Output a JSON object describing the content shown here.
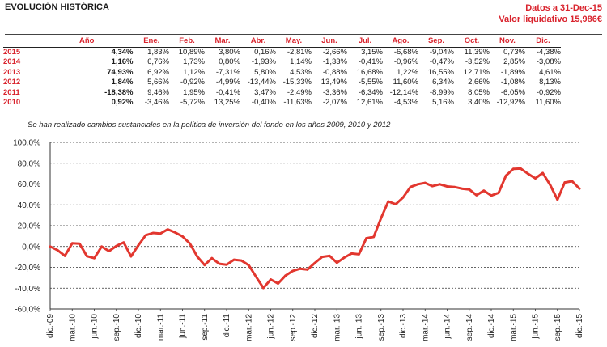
{
  "header": {
    "title": "EVOLUCIÓN HISTÓRICA",
    "date_line": "Datos a 31-Dec-15",
    "value_line": "Valor liquidativo 15,986€"
  },
  "table": {
    "year_header": "Año",
    "month_headers": [
      "Ene.",
      "Feb.",
      "Mar.",
      "Abr.",
      "May.",
      "Jun.",
      "Jul.",
      "Ago.",
      "Sep.",
      "Oct.",
      "Nov.",
      "Dic."
    ],
    "rows": [
      {
        "year": "2015",
        "ytd": "4,34%",
        "months": [
          "1,83%",
          "10,89%",
          "3,80%",
          "0,16%",
          "-2,81%",
          "-2,66%",
          "3,15%",
          "-6,68%",
          "-9,04%",
          "11,39%",
          "0,73%",
          "-4,38%"
        ]
      },
      {
        "year": "2014",
        "ytd": "1,16%",
        "months": [
          "6,76%",
          "1,73%",
          "0,80%",
          "-1,93%",
          "1,14%",
          "-1,33%",
          "-0,41%",
          "-0,96%",
          "-0,47%",
          "-3,52%",
          "2,85%",
          "-3,08%"
        ]
      },
      {
        "year": "2013",
        "ytd": "74,93%",
        "months": [
          "6,92%",
          "1,12%",
          "-7,31%",
          "5,80%",
          "4,53%",
          "-0,88%",
          "16,68%",
          "1,22%",
          "16,55%",
          "12,71%",
          "-1,89%",
          "4,61%"
        ]
      },
      {
        "year": "2012",
        "ytd": "1,84%",
        "months": [
          "5,66%",
          "-0,92%",
          "-4,99%",
          "-13,44%",
          "-15,33%",
          "13,49%",
          "-5,55%",
          "11,60%",
          "6,34%",
          "2,66%",
          "-1,08%",
          "8,13%"
        ]
      },
      {
        "year": "2011",
        "ytd": "-18,38%",
        "months": [
          "9,46%",
          "1,95%",
          "-0,41%",
          "3,47%",
          "-2,49%",
          "-3,36%",
          "-6,34%",
          "-12,14%",
          "-8,99%",
          "8,05%",
          "-6,05%",
          "-0,92%"
        ]
      },
      {
        "year": "2010",
        "ytd": "0,92%",
        "months": [
          "-3,46%",
          "-5,72%",
          "13,25%",
          "-0,40%",
          "-11,63%",
          "-2,07%",
          "12,61%",
          "-4,53%",
          "5,16%",
          "3,40%",
          "-12,92%",
          "11,60%"
        ]
      }
    ]
  },
  "note": "Se han realizado cambios sustanciales en la política de inversión del fondo en los años 2009, 2010 y 2012",
  "chart_data": {
    "type": "line",
    "y_tick_labels": [
      "100,0%",
      "80,0%",
      "60,0%",
      "40,0%",
      "20,0%",
      "0,0%",
      "-20,0%",
      "-40,0%",
      "-60,0%"
    ],
    "ylim": [
      -60,
      100
    ],
    "x_tick_labels": [
      "dic.-09",
      "mar.-10",
      "jun.-10",
      "sep.-10",
      "dic.-10",
      "mar.-11",
      "jun.-11",
      "sep.-11",
      "dic.-11",
      "mar.-12",
      "jun.-12",
      "sep.-12",
      "dic.-12",
      "mar.-13",
      "jun.-13",
      "sep.-13",
      "dic.-13",
      "mar.-14",
      "jun.-14",
      "sep.-14",
      "dic.-14",
      "mar.-15",
      "jun.-15",
      "sep.-15",
      "dic.-15"
    ],
    "grid": true,
    "line_color": "#e2372f",
    "x": [
      "dic.-09",
      "ene.-10",
      "feb.-10",
      "mar.-10",
      "abr.-10",
      "may.-10",
      "jun.-10",
      "jul.-10",
      "ago.-10",
      "sep.-10",
      "oct.-10",
      "nov.-10",
      "dic.-10",
      "ene.-11",
      "feb.-11",
      "mar.-11",
      "abr.-11",
      "may.-11",
      "jun.-11",
      "jul.-11",
      "ago.-11",
      "sep.-11",
      "oct.-11",
      "nov.-11",
      "dic.-11",
      "ene.-12",
      "feb.-12",
      "mar.-12",
      "abr.-12",
      "may.-12",
      "jun.-12",
      "jul.-12",
      "ago.-12",
      "sep.-12",
      "oct.-12",
      "nov.-12",
      "dic.-12",
      "ene.-13",
      "feb.-13",
      "mar.-13",
      "abr.-13",
      "may.-13",
      "jun.-13",
      "jul.-13",
      "ago.-13",
      "sep.-13",
      "oct.-13",
      "nov.-13",
      "dic.-13",
      "ene.-14",
      "feb.-14",
      "mar.-14",
      "abr.-14",
      "may.-14",
      "jun.-14",
      "jul.-14",
      "ago.-14",
      "sep.-14",
      "oct.-14",
      "nov.-14",
      "dic.-14",
      "ene.-15",
      "feb.-15",
      "mar.-15",
      "abr.-15",
      "may.-15",
      "jun.-15",
      "jul.-15",
      "ago.-15",
      "sep.-15",
      "oct.-15",
      "nov.-15",
      "dic.-15"
    ],
    "values": [
      0,
      -3.5,
      -9.0,
      3.1,
      2.7,
      -9.3,
      -11.2,
      0.0,
      -4.5,
      0.5,
      3.9,
      -9.5,
      1.2,
      10.8,
      13.0,
      12.5,
      16.4,
      13.5,
      9.7,
      2.8,
      -9.6,
      -17.8,
      -11.2,
      -16.6,
      -17.4,
      -12.7,
      -13.5,
      -17.9,
      -28.9,
      -39.8,
      -31.7,
      -35.5,
      -28.0,
      -23.4,
      -21.3,
      -22.2,
      -15.8,
      -10.0,
      -9.0,
      -15.6,
      -10.7,
      -6.7,
      -7.5,
      7.9,
      9.2,
      27.2,
      43.3,
      40.6,
      47.0,
      57.1,
      59.8,
      61.1,
      58.0,
      59.8,
      57.7,
      57.1,
      55.6,
      54.8,
      49.3,
      53.6,
      48.9,
      51.6,
      68.1,
      74.5,
      74.8,
      69.9,
      65.4,
      70.6,
      59.3,
      45.0,
      61.5,
      62.7,
      55.6
    ]
  }
}
